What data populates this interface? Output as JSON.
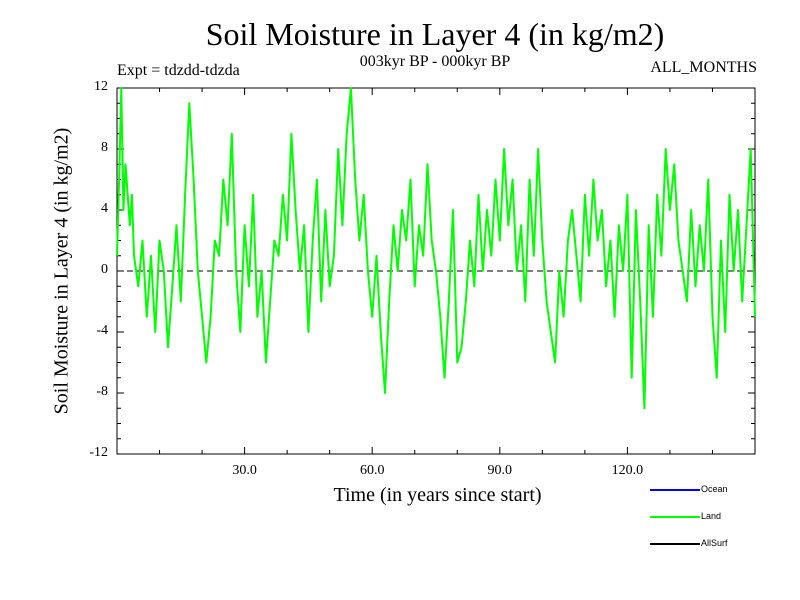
{
  "chart_data": {
    "type": "line",
    "title": "Soil Moisture in Layer 4 (in kg/m2)",
    "subtitle": "003kyr BP - 000kyr BP",
    "experiment_label": "Expt = tdzdd-tdzda",
    "months_label": "ALL_MONTHS",
    "xlabel": "Time (in years since start)",
    "ylabel": "Soil Moisture in Layer 4 (in kg/m2)",
    "xlim": [
      0,
      150
    ],
    "ylim": [
      -12,
      12
    ],
    "x_ticks": [
      30,
      60,
      90,
      120
    ],
    "x_tick_labels": [
      "30.0",
      "60.0",
      "90.0",
      "120.0"
    ],
    "y_ticks": [
      12,
      8,
      4,
      0,
      -4,
      -8,
      -12
    ],
    "y_tick_labels": [
      "12",
      "8",
      "4",
      "0",
      "-4",
      "-8",
      "-12"
    ],
    "zero_line": 0,
    "series": [
      {
        "name": "Land",
        "color": "#00ff00",
        "points": [
          [
            0,
            1
          ],
          [
            0.5,
            6
          ],
          [
            1,
            12
          ],
          [
            1.5,
            4
          ],
          [
            2,
            7
          ],
          [
            3,
            3
          ],
          [
            3.5,
            5
          ],
          [
            4,
            1
          ],
          [
            5,
            -1
          ],
          [
            6,
            2
          ],
          [
            7,
            -3
          ],
          [
            8,
            1
          ],
          [
            9,
            -4
          ],
          [
            10,
            2
          ],
          [
            11,
            0
          ],
          [
            12,
            -5
          ],
          [
            13,
            -1
          ],
          [
            14,
            3
          ],
          [
            15,
            -2
          ],
          [
            16,
            5
          ],
          [
            17,
            11
          ],
          [
            18,
            6
          ],
          [
            19,
            0
          ],
          [
            20,
            -3
          ],
          [
            21,
            -6
          ],
          [
            22,
            -3
          ],
          [
            23,
            2
          ],
          [
            24,
            1
          ],
          [
            25,
            6
          ],
          [
            26,
            3
          ],
          [
            27,
            9
          ],
          [
            28,
            0
          ],
          [
            29,
            -4
          ],
          [
            30,
            3
          ],
          [
            31,
            -1
          ],
          [
            32,
            5
          ],
          [
            33,
            -3
          ],
          [
            34,
            0
          ],
          [
            35,
            -6
          ],
          [
            36,
            -2
          ],
          [
            37,
            2
          ],
          [
            38,
            1
          ],
          [
            39,
            5
          ],
          [
            40,
            2
          ],
          [
            41,
            9
          ],
          [
            42,
            4
          ],
          [
            43,
            0
          ],
          [
            44,
            3
          ],
          [
            45,
            -4
          ],
          [
            46,
            2
          ],
          [
            47,
            6
          ],
          [
            48,
            -2
          ],
          [
            49,
            4
          ],
          [
            50,
            -1
          ],
          [
            51,
            1
          ],
          [
            52,
            8
          ],
          [
            53,
            3
          ],
          [
            54,
            9
          ],
          [
            55,
            12
          ],
          [
            56,
            6
          ],
          [
            57,
            2
          ],
          [
            58,
            5
          ],
          [
            59,
            0
          ],
          [
            60,
            -3
          ],
          [
            61,
            1
          ],
          [
            62,
            -4
          ],
          [
            63,
            -8
          ],
          [
            64,
            -2
          ],
          [
            65,
            3
          ],
          [
            66,
            0
          ],
          [
            67,
            4
          ],
          [
            68,
            2
          ],
          [
            69,
            6
          ],
          [
            70,
            -1
          ],
          [
            71,
            3
          ],
          [
            72,
            1
          ],
          [
            73,
            7
          ],
          [
            74,
            2
          ],
          [
            75,
            0
          ],
          [
            76,
            -3
          ],
          [
            77,
            -7
          ],
          [
            78,
            -2
          ],
          [
            79,
            4
          ],
          [
            80,
            -6
          ],
          [
            81,
            -5
          ],
          [
            82,
            -2
          ],
          [
            83,
            2
          ],
          [
            84,
            -1
          ],
          [
            85,
            5
          ],
          [
            86,
            0
          ],
          [
            87,
            4
          ],
          [
            88,
            1
          ],
          [
            89,
            6
          ],
          [
            90,
            2
          ],
          [
            91,
            8
          ],
          [
            92,
            3
          ],
          [
            93,
            6
          ],
          [
            94,
            0
          ],
          [
            95,
            3
          ],
          [
            96,
            -2
          ],
          [
            97,
            6
          ],
          [
            98,
            1
          ],
          [
            99,
            8
          ],
          [
            100,
            2
          ],
          [
            101,
            -2
          ],
          [
            102,
            -4
          ],
          [
            103,
            -6
          ],
          [
            104,
            0
          ],
          [
            105,
            -3
          ],
          [
            106,
            2
          ],
          [
            107,
            4
          ],
          [
            108,
            1
          ],
          [
            109,
            -2
          ],
          [
            110,
            5
          ],
          [
            111,
            1
          ],
          [
            112,
            6
          ],
          [
            113,
            2
          ],
          [
            114,
            4
          ],
          [
            115,
            -1
          ],
          [
            116,
            2
          ],
          [
            117,
            -3
          ],
          [
            118,
            3
          ],
          [
            119,
            0
          ],
          [
            120,
            5
          ],
          [
            121,
            -7
          ],
          [
            122,
            4
          ],
          [
            123,
            -2
          ],
          [
            124,
            -9
          ],
          [
            125,
            3
          ],
          [
            126,
            -3
          ],
          [
            127,
            5
          ],
          [
            128,
            1
          ],
          [
            129,
            8
          ],
          [
            130,
            4
          ],
          [
            131,
            7
          ],
          [
            132,
            2
          ],
          [
            133,
            0
          ],
          [
            134,
            -2
          ],
          [
            135,
            4
          ],
          [
            136,
            -1
          ],
          [
            137,
            3
          ],
          [
            138,
            0
          ],
          [
            139,
            6
          ],
          [
            140,
            -3
          ],
          [
            141,
            -7
          ],
          [
            142,
            2
          ],
          [
            143,
            -4
          ],
          [
            144,
            5
          ],
          [
            145,
            0
          ],
          [
            146,
            4
          ],
          [
            147,
            -2
          ],
          [
            148,
            3
          ],
          [
            149,
            8
          ],
          [
            150,
            -3
          ]
        ]
      }
    ],
    "legend": [
      {
        "name": "Ocean",
        "color": "#0000ff"
      },
      {
        "name": "Land",
        "color": "#00ff00"
      },
      {
        "name": "AllSurf",
        "color": "#000000"
      }
    ]
  }
}
